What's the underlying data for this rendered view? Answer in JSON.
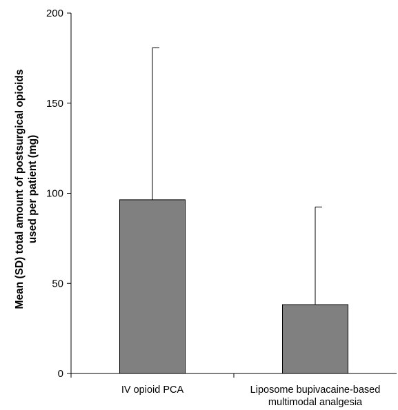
{
  "chart_data": {
    "type": "bar",
    "title": "",
    "xlabel": "",
    "ylabel": [
      "Mean (SD) total amount of postsurgical opioids",
      "used per patient (mg)"
    ],
    "ylim": [
      0,
      200
    ],
    "yticks": [
      0,
      50,
      100,
      150,
      200
    ],
    "grid": false,
    "categories": [
      [
        "IV opioid PCA"
      ],
      [
        "Liposome bupivacaine-based",
        "multimodal analgesia"
      ]
    ],
    "series": [
      {
        "values": [
          96.4,
          38.2
        ],
        "sd": [
          84.4,
          54.2
        ],
        "color": "#808080"
      }
    ]
  }
}
